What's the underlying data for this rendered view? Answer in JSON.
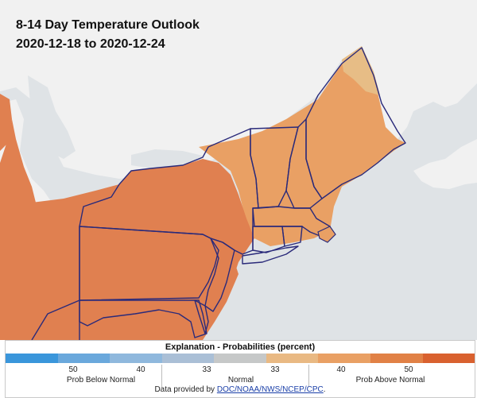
{
  "title": {
    "line1": "8-14 Day Temperature Outlook",
    "line2": "2020-12-18 to 2020-12-24"
  },
  "legend": {
    "title": "Explanation - Probabilities (percent)",
    "colors": [
      "#3a96db",
      "#6aa8dc",
      "#8fb8dd",
      "#aabfd6",
      "#c6c8c8",
      "#e9b983",
      "#e9a064",
      "#e18146",
      "#d9612f"
    ],
    "tick_labels": [
      "50",
      "40",
      "33",
      "33",
      "40",
      "50"
    ],
    "category_labels": [
      "Prob Below Normal",
      "Normal",
      "Prob Above Normal"
    ],
    "credit_prefix": "Data provided by",
    "credit_link": "DOC/NOAA/NWS/NCEP/CPC",
    "credit_suffix": "."
  },
  "map": {
    "water_color": "#dfe3e6",
    "land_color": "#f3f3f3",
    "above_40_color": "#e9a064",
    "above_50_color": "#e08050",
    "above_33_color": "#e7bd86",
    "state_border_color": "#2a2a7a"
  }
}
